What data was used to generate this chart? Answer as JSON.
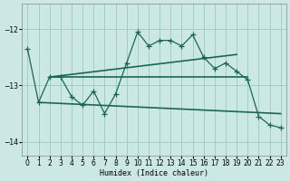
{
  "xlabel": "Humidex (Indice chaleur)",
  "background_color": "#cce8e4",
  "grid_color": "#99ccbb",
  "line_color": "#1a6655",
  "xlim": [
    -0.5,
    23.5
  ],
  "ylim": [
    -14.25,
    -11.55
  ],
  "yticks": [
    -14,
    -13,
    -12
  ],
  "xticks": [
    0,
    1,
    2,
    3,
    4,
    5,
    6,
    7,
    8,
    9,
    10,
    11,
    12,
    13,
    14,
    15,
    16,
    17,
    18,
    19,
    20,
    21,
    22,
    23
  ],
  "main_x": [
    0,
    1,
    2,
    3,
    4,
    5,
    6,
    7,
    8,
    9,
    10,
    11,
    12,
    13,
    14,
    15,
    16,
    17,
    18,
    19,
    20,
    21,
    22,
    23
  ],
  "main_y": [
    -12.35,
    -13.3,
    -12.85,
    -12.85,
    -13.2,
    -13.35,
    -13.1,
    -13.5,
    -13.15,
    -12.6,
    -12.05,
    -12.3,
    -12.2,
    -12.2,
    -12.3,
    -12.1,
    -12.5,
    -12.7,
    -12.6,
    -12.75,
    -12.9,
    -13.55,
    -13.7,
    -13.75
  ],
  "line1_x": [
    2,
    20
  ],
  "line1_y": [
    -12.85,
    -12.85
  ],
  "line2_x": [
    2,
    19
  ],
  "line2_y": [
    -12.85,
    -12.45
  ],
  "line3_x": [
    1,
    23
  ],
  "line3_y": [
    -13.3,
    -13.5
  ]
}
